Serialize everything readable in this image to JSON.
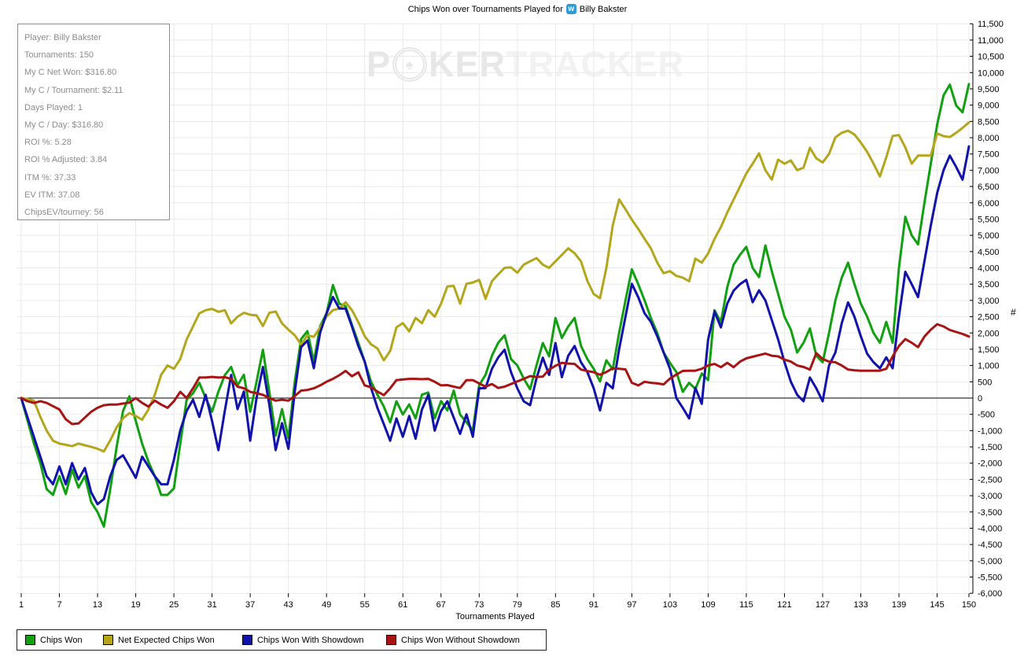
{
  "title": {
    "prefix": "Chips Won over Tournaments Played for",
    "player_name": "Billy Bakster",
    "icon_letter": "w"
  },
  "watermark": {
    "p": "P",
    "spade": "♠",
    "ker": "KER",
    "tracker": "TRACKER"
  },
  "stats": {
    "lines": [
      "Player: Billy Bakster",
      "Tournaments: 150",
      "My C Net Won: $316.80",
      "My C / Tournament: $2.11",
      "Days Played: 1",
      "My C / Day: $316.80",
      "ROI %: 5.28",
      "ROI % Adjusted: 3.84",
      "ITM %: 37.33",
      "EV ITM: 37.08",
      "ChipsEV/tourney: 56"
    ]
  },
  "chart_data": {
    "type": "line",
    "xlabel": "Tournaments Played",
    "ylabel": "#",
    "xlim": [
      1,
      150
    ],
    "ylim": [
      -6000,
      11500
    ],
    "ytick_step": 500,
    "xticks": [
      1,
      7,
      13,
      19,
      25,
      31,
      37,
      43,
      49,
      55,
      61,
      67,
      73,
      79,
      85,
      91,
      97,
      103,
      109,
      115,
      121,
      127,
      133,
      139,
      145,
      150
    ],
    "grid": true,
    "legend_position": "bottom-left",
    "zero_line": true,
    "series": [
      {
        "name": "Chips Won",
        "color": "#10a010",
        "values": [
          0,
          -700,
          -1400,
          -2000,
          -2800,
          -2975,
          -2400,
          -2950,
          -2200,
          -2750,
          -2400,
          -3200,
          -3500,
          -3950,
          -2800,
          -1500,
          -400,
          50,
          -700,
          -1400,
          -1950,
          -2400,
          -2975,
          -2975,
          -2775,
          -1400,
          -50,
          150,
          470,
          0,
          -420,
          200,
          700,
          955,
          390,
          715,
          -420,
          500,
          1485,
          200,
          -1150,
          -340,
          -1230,
          500,
          1810,
          2055,
          1120,
          2215,
          2600,
          3470,
          2900,
          2820,
          2250,
          1700,
          1120,
          500,
          105,
          -260,
          -745,
          -100,
          -505,
          -195,
          -625,
          105,
          170,
          -625,
          -95,
          -380,
          230,
          -505,
          -745,
          -990,
          400,
          715,
          1300,
          1700,
          1930,
          1200,
          1000,
          600,
          270,
          1000,
          1690,
          1280,
          2460,
          1850,
          2200,
          2460,
          1605,
          1200,
          900,
          510,
          1160,
          880,
          2000,
          3000,
          3955,
          3500,
          3000,
          2460,
          2000,
          1400,
          1080,
          800,
          190,
          470,
          280,
          755,
          550,
          2700,
          2335,
          3400,
          4100,
          4400,
          4645,
          4000,
          3715,
          4690,
          3900,
          3200,
          2500,
          2100,
          1400,
          1700,
          2140,
          1300,
          1100,
          2000,
          3000,
          3700,
          4160,
          3500,
          2900,
          2500,
          2000,
          1700,
          2340,
          1700,
          4000,
          5570,
          5000,
          4720,
          6000,
          7200,
          8400,
          9300,
          9630,
          8990,
          8780,
          9650
        ]
      },
      {
        "name": "Net Expected Chips Won",
        "color": "#b3a61b",
        "values": [
          0,
          -30,
          -80,
          -580,
          -1000,
          -1310,
          -1400,
          -1435,
          -1480,
          -1400,
          -1450,
          -1500,
          -1560,
          -1640,
          -1300,
          -900,
          -620,
          -465,
          -550,
          -665,
          -350,
          100,
          715,
          1000,
          900,
          1200,
          1800,
          2200,
          2600,
          2700,
          2740,
          2650,
          2700,
          2295,
          2500,
          2620,
          2560,
          2540,
          2215,
          2620,
          2660,
          2295,
          2100,
          1930,
          1645,
          1930,
          1880,
          2170,
          2500,
          2700,
          2750,
          2945,
          2700,
          2335,
          1900,
          1650,
          1525,
          1160,
          1445,
          2175,
          2300,
          2050,
          2460,
          2300,
          2700,
          2500,
          2900,
          3430,
          3445,
          2900,
          3510,
          3550,
          3630,
          3050,
          3590,
          3800,
          4000,
          4015,
          3850,
          4100,
          4200,
          4300,
          4100,
          4000,
          4200,
          4400,
          4600,
          4450,
          4200,
          3600,
          3200,
          3065,
          4000,
          5300,
          6100,
          5800,
          5480,
          5200,
          4890,
          4600,
          4160,
          3835,
          3900,
          3755,
          3700,
          3590,
          4285,
          4160,
          4445,
          4890,
          5255,
          5700,
          6100,
          6500,
          6900,
          7200,
          7520,
          7000,
          6715,
          7325,
          7200,
          7300,
          7000,
          7080,
          7690,
          7365,
          7240,
          7500,
          8010,
          8150,
          8215,
          8100,
          7850,
          7565,
          7200,
          6810,
          7400,
          8055,
          8080,
          7700,
          7200,
          7450,
          7450,
          7450,
          8130,
          8050,
          8020,
          8150,
          8300,
          8470
        ]
      },
      {
        "name": "Chips Won With Showdown",
        "color": "#1111ac",
        "values": [
          0,
          -600,
          -1200,
          -1800,
          -2400,
          -2650,
          -2100,
          -2650,
          -2000,
          -2500,
          -2150,
          -2900,
          -3260,
          -3100,
          -2400,
          -1900,
          -1760,
          -2100,
          -2450,
          -1800,
          -2100,
          -2400,
          -2650,
          -2650,
          -1900,
          -990,
          -400,
          -50,
          -580,
          100,
          -700,
          -1600,
          -400,
          710,
          -340,
          200,
          -1310,
          0,
          955,
          -200,
          -1600,
          -770,
          -1560,
          200,
          1565,
          1770,
          915,
          2010,
          2600,
          3105,
          2750,
          2750,
          2200,
          1600,
          1120,
          310,
          -300,
          -800,
          -1310,
          -625,
          -1190,
          -550,
          -1250,
          -350,
          100,
          -1000,
          -400,
          -100,
          -600,
          -1100,
          -500,
          -1190,
          300,
          310,
          900,
          1250,
          1485,
          800,
          300,
          -100,
          -220,
          600,
          1240,
          710,
          1690,
          640,
          1300,
          1600,
          1100,
          800,
          300,
          -380,
          470,
          300,
          1500,
          2500,
          3510,
          3100,
          2600,
          2340,
          1900,
          1400,
          900,
          0,
          -300,
          -625,
          310,
          -180,
          1800,
          2660,
          2170,
          2900,
          3300,
          3500,
          3630,
          2945,
          3310,
          3000,
          2400,
          1800,
          1100,
          500,
          100,
          -100,
          630,
          300,
          -100,
          1000,
          1400,
          2300,
          2940,
          2500,
          1900,
          1360,
          1100,
          915,
          1250,
          915,
          2500,
          3880,
          3500,
          3100,
          4200,
          5300,
          6300,
          7000,
          7450,
          7100,
          6710,
          7730
        ]
      },
      {
        "name": "Chips Won Without Showdown",
        "color": "#a81414",
        "values": [
          0,
          -100,
          -150,
          -100,
          -150,
          -250,
          -350,
          -650,
          -800,
          -780,
          -600,
          -420,
          -300,
          -220,
          -200,
          -200,
          -170,
          -140,
          0,
          -150,
          -260,
          -80,
          -200,
          -300,
          -100,
          190,
          0,
          300,
          630,
          630,
          650,
          630,
          640,
          590,
          350,
          300,
          190,
          150,
          100,
          0,
          -80,
          -50,
          -80,
          60,
          230,
          250,
          300,
          390,
          500,
          590,
          700,
          835,
          670,
          790,
          390,
          330,
          200,
          90,
          300,
          550,
          570,
          590,
          590,
          580,
          590,
          500,
          390,
          400,
          350,
          310,
          550,
          550,
          450,
          350,
          430,
          310,
          350,
          430,
          510,
          590,
          675,
          650,
          660,
          875,
          990,
          1080,
          1060,
          1050,
          875,
          830,
          795,
          715,
          800,
          915,
          900,
          880,
          470,
          390,
          500,
          470,
          450,
          420,
          600,
          720,
          835,
          840,
          840,
          900,
          1000,
          1050,
          950,
          1080,
          950,
          1120,
          1220,
          1270,
          1320,
          1365,
          1300,
          1280,
          1180,
          1120,
          1000,
          955,
          875,
          1380,
          1200,
          1120,
          1100,
          1000,
          875,
          850,
          840,
          840,
          840,
          840,
          900,
          1280,
          1600,
          1810,
          1700,
          1565,
          1890,
          2100,
          2270,
          2200,
          2090,
          2030,
          1970,
          1890
        ]
      }
    ]
  }
}
